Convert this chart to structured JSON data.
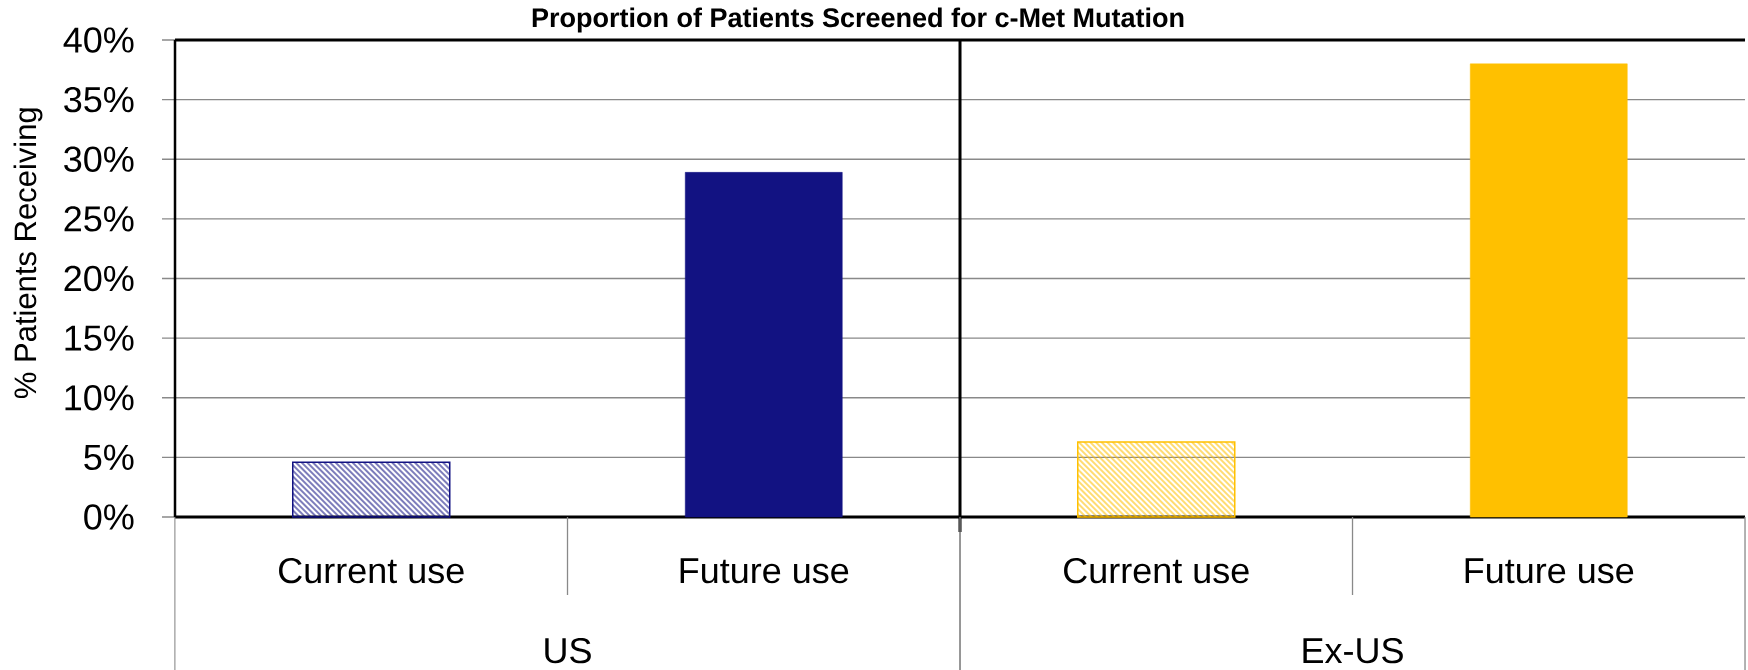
{
  "chart_data": [
    {
      "type": "bar",
      "title": "Proportion of Patients Screened for c-Met Mutation",
      "ylabel": "% Patients Receiving",
      "xlabel": "US",
      "categories": [
        "Current use",
        "Future use"
      ],
      "values": [
        4.6,
        28.9
      ],
      "color": "#121282",
      "ylim": [
        0,
        40
      ],
      "yticks": [
        {
          "value": 0,
          "label": "0%"
        },
        {
          "value": 5,
          "label": "5%"
        },
        {
          "value": 10,
          "label": "10%"
        },
        {
          "value": 15,
          "label": "15%"
        },
        {
          "value": 20,
          "label": "20%"
        },
        {
          "value": 25,
          "label": "25%"
        },
        {
          "value": 30,
          "label": "30%"
        },
        {
          "value": 35,
          "label": "35%"
        },
        {
          "value": 40,
          "label": "40%"
        }
      ],
      "grid": "y"
    },
    {
      "type": "bar",
      "xlabel": "Ex-US",
      "categories": [
        "Current use",
        "Future use"
      ],
      "values": [
        6.3,
        38
      ],
      "color": "#ffc000",
      "ylim": [
        0,
        40
      ],
      "yticks": [
        0,
        5,
        10,
        15,
        20,
        25,
        30,
        35,
        40
      ],
      "grid": "y",
      "tick_labels": "x"
    }
  ]
}
